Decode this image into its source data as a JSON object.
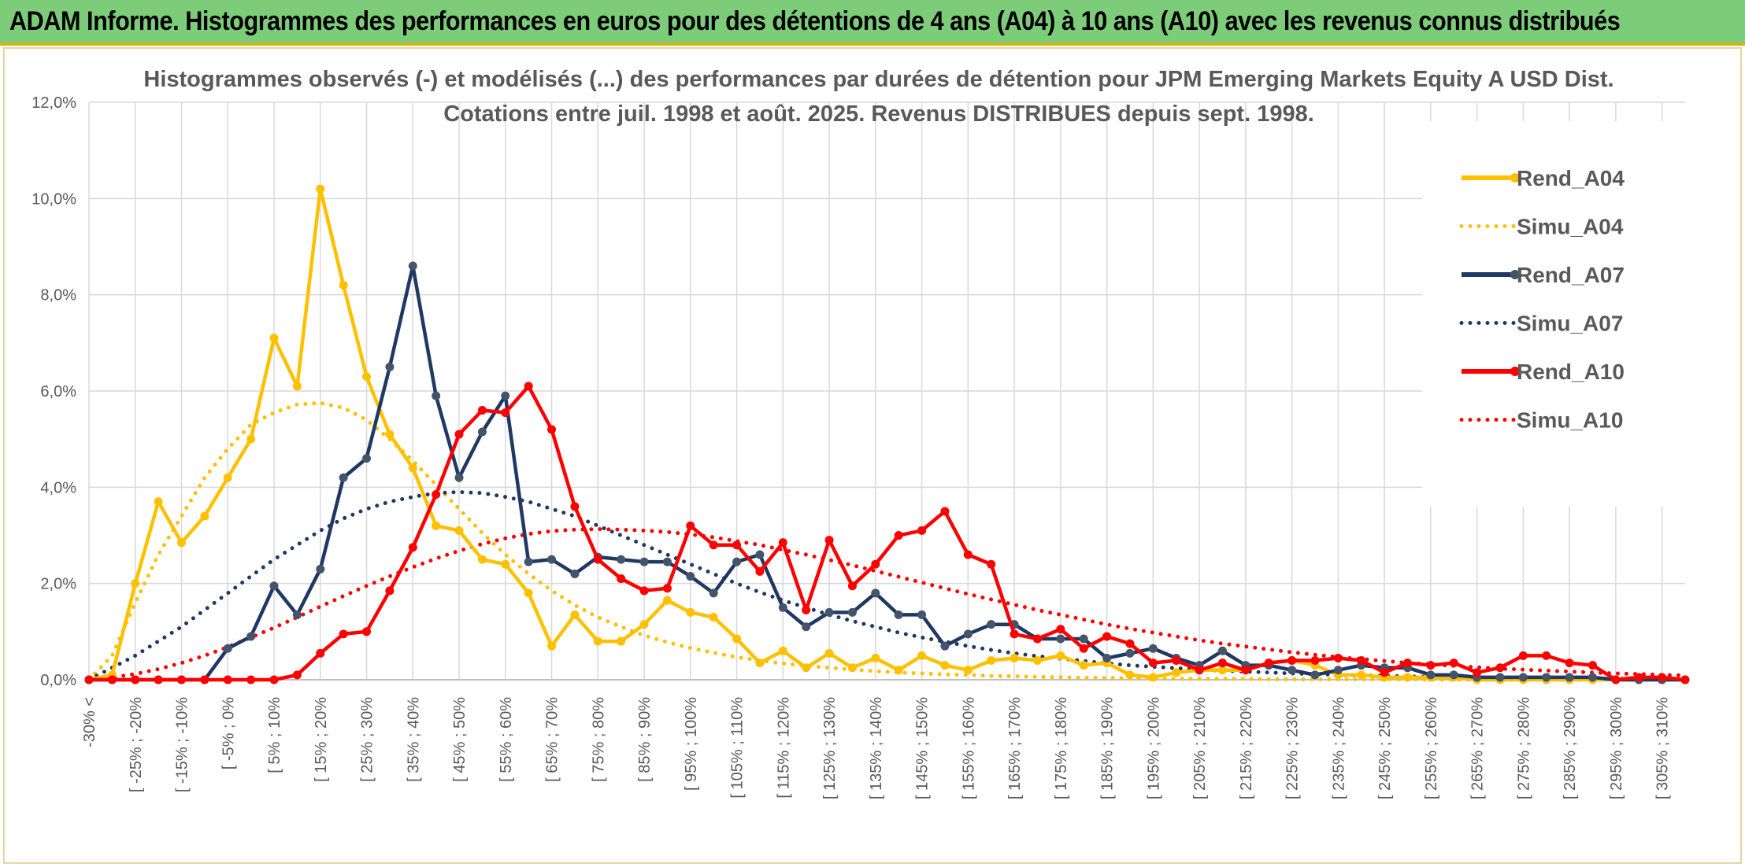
{
  "banner": {
    "title": "ADAM Informe. Histogrammes des performances en euros pour des détentions de 4 ans (A04) à 10 ans (A10) avec les revenus connus distribués"
  },
  "colors": {
    "banner_bg": "#7ccc7a",
    "A04": "#ffc000",
    "A07": "#1f3864",
    "A10": "#ff0000",
    "grid": "#d9d9d9",
    "text": "#595959"
  },
  "chart_data": {
    "type": "line",
    "title": "Histogrammes observés (-) et modélisés (...) des performances par durées de détention pour JPM Emerging Markets Equity A USD Dist.",
    "subtitle": "Cotations entre juil. 1998 et août. 2025. Revenus DISTRIBUES depuis sept. 1998.",
    "xlabel": "",
    "ylabel": "",
    "ylim": [
      0,
      12
    ],
    "yticks": [
      "0,0%",
      "2,0%",
      "4,0%",
      "6,0%",
      "8,0%",
      "10,0%",
      "12,0%"
    ],
    "grid": true,
    "legend_position": "right",
    "x_labels": [
      "-30% <",
      "[ -25% ; -20%",
      "[ -15% ; -10%",
      "[ -5% ; 0%",
      "[ 5% ; 10%",
      "[ 15% ; 20%",
      "[ 25% ; 30%",
      "[ 35% ; 40%",
      "[ 45% ; 50%",
      "[ 55% ; 60%",
      "[ 65% ; 70%",
      "[ 75% ; 80%",
      "[ 85% ; 90%",
      "[ 95% ; 100%",
      "[ 105% ; 110%",
      "[ 115% ; 120%",
      "[ 125% ; 130%",
      "[ 135% ; 140%",
      "[ 145% ; 150%",
      "[ 155% ; 160%",
      "[ 165% ; 170%",
      "[ 175% ; 180%",
      "[ 185% ; 190%",
      "[ 195% ; 200%",
      "[ 205% ; 210%",
      "[ 215% ; 220%",
      "[ 225% ; 230%",
      "[ 235% ; 240%",
      "[ 245% ; 250%",
      "[ 255% ; 260%",
      "[ 265% ; 270%",
      "[ 275% ; 280%",
      "[ 285% ; 290%",
      "[ 295% ; 300%",
      "[ 305% ; 310%"
    ],
    "n_points": 70,
    "series": [
      {
        "name": "Rend_A04",
        "style": "solid",
        "color": "#ffc000",
        "values": [
          0.0,
          0.1,
          2.0,
          3.7,
          2.85,
          3.4,
          4.2,
          5.0,
          7.1,
          6.1,
          10.2,
          8.2,
          6.3,
          5.1,
          4.4,
          3.2,
          3.1,
          2.5,
          2.4,
          1.8,
          0.7,
          1.35,
          0.8,
          0.8,
          1.15,
          1.65,
          1.4,
          1.3,
          0.85,
          0.35,
          0.6,
          0.25,
          0.55,
          0.25,
          0.45,
          0.2,
          0.5,
          0.3,
          0.2,
          0.4,
          0.45,
          0.4,
          0.5,
          0.3,
          0.35,
          0.1,
          0.05,
          0.15,
          0.2,
          0.2,
          0.2,
          0.35,
          0.4,
          0.3,
          0.1,
          0.1,
          0.05,
          0.05,
          0.05,
          0.05,
          0.0,
          0.0,
          0.0,
          0.0,
          0.0,
          0.0,
          0.0,
          0.0,
          0.0,
          0.0
        ]
      },
      {
        "name": "Simu_A04",
        "style": "dotted",
        "color": "#ffc000",
        "values": [
          0.0,
          0.5,
          1.6,
          2.6,
          3.4,
          4.2,
          4.8,
          5.3,
          5.55,
          5.72,
          5.75,
          5.65,
          5.4,
          5.0,
          4.55,
          4.05,
          3.55,
          3.05,
          2.6,
          2.2,
          1.85,
          1.55,
          1.3,
          1.1,
          0.92,
          0.78,
          0.66,
          0.56,
          0.47,
          0.4,
          0.34,
          0.29,
          0.25,
          0.21,
          0.18,
          0.15,
          0.13,
          0.11,
          0.1,
          0.08,
          0.07,
          0.06,
          0.05,
          0.04,
          0.04,
          0.03,
          0.03,
          0.02,
          0.02,
          0.02,
          0.02,
          0.01,
          0.01,
          0.01,
          0.01,
          0.01,
          0.01,
          0.01,
          0.0,
          0.0,
          0.0,
          0.0,
          0.0,
          0.0,
          0.0,
          0.0,
          0.0,
          0.0,
          0.0,
          0.0
        ]
      },
      {
        "name": "Rend_A07",
        "style": "solid",
        "color": "#1f3864",
        "values": [
          0.0,
          0.0,
          0.0,
          0.0,
          0.0,
          0.0,
          0.65,
          0.9,
          1.95,
          1.35,
          2.3,
          4.2,
          4.6,
          6.5,
          8.6,
          5.9,
          4.2,
          5.15,
          5.9,
          2.45,
          2.5,
          2.2,
          2.55,
          2.5,
          2.45,
          2.45,
          2.15,
          1.8,
          2.45,
          2.6,
          1.5,
          1.1,
          1.4,
          1.4,
          1.8,
          1.35,
          1.35,
          0.7,
          0.95,
          1.15,
          1.15,
          0.85,
          0.85,
          0.85,
          0.45,
          0.55,
          0.65,
          0.45,
          0.3,
          0.6,
          0.3,
          0.3,
          0.2,
          0.1,
          0.2,
          0.3,
          0.25,
          0.25,
          0.1,
          0.1,
          0.05,
          0.05,
          0.05,
          0.05,
          0.05,
          0.05,
          0.0,
          0.0,
          0.0,
          0.0
        ]
      },
      {
        "name": "Simu_A07",
        "style": "dotted",
        "color": "#1f3864",
        "values": [
          0.0,
          0.25,
          0.5,
          0.8,
          1.1,
          1.45,
          1.8,
          2.15,
          2.5,
          2.8,
          3.1,
          3.35,
          3.55,
          3.7,
          3.8,
          3.88,
          3.9,
          3.88,
          3.8,
          3.7,
          3.55,
          3.4,
          3.2,
          3.0,
          2.8,
          2.6,
          2.4,
          2.2,
          2.0,
          1.82,
          1.65,
          1.5,
          1.35,
          1.22,
          1.1,
          0.98,
          0.88,
          0.79,
          0.7,
          0.62,
          0.55,
          0.49,
          0.44,
          0.39,
          0.34,
          0.3,
          0.27,
          0.24,
          0.21,
          0.19,
          0.17,
          0.15,
          0.13,
          0.12,
          0.1,
          0.09,
          0.08,
          0.07,
          0.06,
          0.05,
          0.05,
          0.04,
          0.04,
          0.03,
          0.03,
          0.03,
          0.02,
          0.02,
          0.02,
          0.02
        ]
      },
      {
        "name": "Rend_A10",
        "style": "solid",
        "color": "#ff0000",
        "values": [
          0.0,
          0.0,
          0.0,
          0.0,
          0.0,
          0.0,
          0.0,
          0.0,
          0.0,
          0.1,
          0.55,
          0.95,
          1.0,
          1.85,
          2.75,
          3.85,
          5.1,
          5.6,
          5.55,
          6.1,
          5.2,
          3.6,
          2.5,
          2.1,
          1.85,
          1.9,
          3.2,
          2.8,
          2.8,
          2.25,
          2.85,
          1.45,
          2.9,
          1.95,
          2.4,
          3.0,
          3.1,
          3.5,
          2.6,
          2.4,
          0.95,
          0.85,
          1.05,
          0.65,
          0.9,
          0.75,
          0.35,
          0.4,
          0.2,
          0.35,
          0.2,
          0.35,
          0.4,
          0.4,
          0.45,
          0.4,
          0.15,
          0.35,
          0.3,
          0.35,
          0.15,
          0.25,
          0.5,
          0.5,
          0.35,
          0.3,
          0.0,
          0.05,
          0.05,
          0.0
        ]
      },
      {
        "name": "Simu_A10",
        "style": "dotted",
        "color": "#ff0000",
        "values": [
          0.0,
          0.05,
          0.12,
          0.22,
          0.35,
          0.5,
          0.68,
          0.88,
          1.08,
          1.3,
          1.52,
          1.74,
          1.95,
          2.15,
          2.34,
          2.52,
          2.68,
          2.82,
          2.94,
          3.03,
          3.09,
          3.12,
          3.13,
          3.12,
          3.1,
          3.07,
          3.02,
          2.96,
          2.88,
          2.8,
          2.7,
          2.6,
          2.49,
          2.38,
          2.26,
          2.14,
          2.02,
          1.9,
          1.78,
          1.67,
          1.56,
          1.45,
          1.35,
          1.25,
          1.15,
          1.06,
          0.98,
          0.9,
          0.82,
          0.75,
          0.69,
          0.63,
          0.57,
          0.52,
          0.47,
          0.43,
          0.39,
          0.35,
          0.32,
          0.29,
          0.26,
          0.23,
          0.21,
          0.19,
          0.17,
          0.15,
          0.13,
          0.12,
          0.1,
          0.09
        ]
      }
    ]
  }
}
